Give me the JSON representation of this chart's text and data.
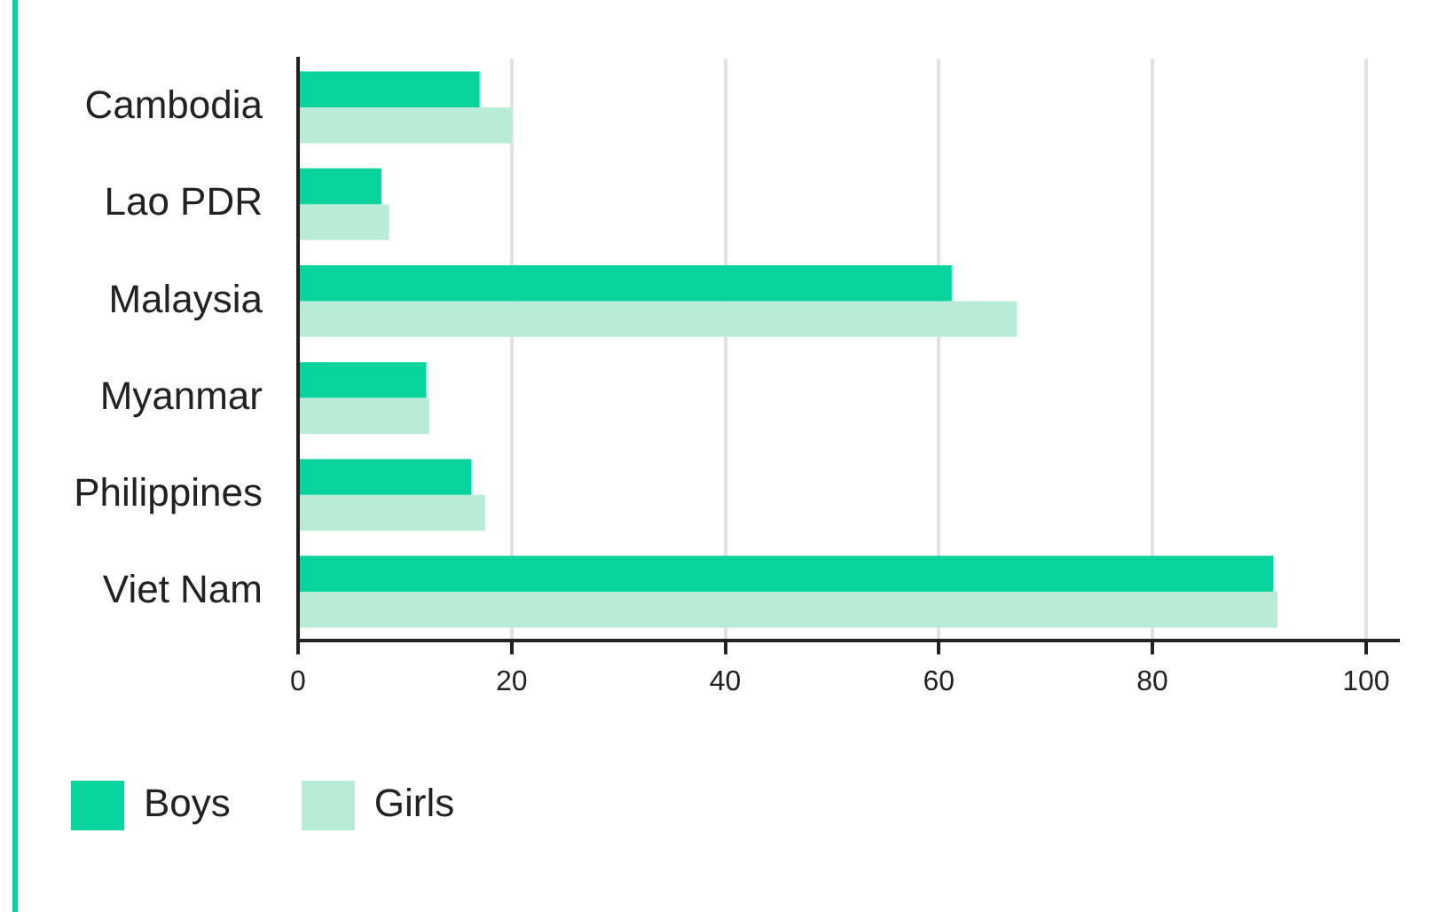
{
  "chart_data": {
    "type": "bar",
    "orientation": "horizontal",
    "categories": [
      "Cambodia",
      "Lao PDR",
      "Malaysia",
      "Myanmar",
      "Philippines",
      "Viet Nam"
    ],
    "series": [
      {
        "name": "Boys",
        "color": "#07d49d",
        "values": [
          17,
          7.8,
          61.2,
          12,
          16.2,
          91.3
        ]
      },
      {
        "name": "Girls",
        "color": "#b8ecd9",
        "values": [
          20,
          8.5,
          67.3,
          12.3,
          17.5,
          91.7
        ]
      }
    ],
    "xlim": [
      0,
      103
    ],
    "xticks": [
      0,
      20,
      40,
      60,
      80,
      100
    ],
    "grid": "x",
    "legend": "bottom left"
  }
}
